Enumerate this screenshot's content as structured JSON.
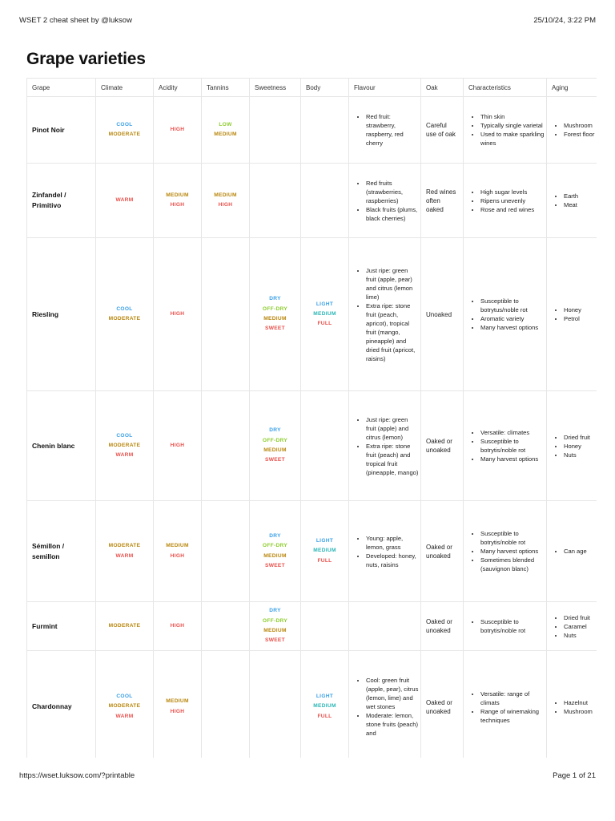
{
  "header": {
    "title": "WSET 2 cheat sheet by @luksow",
    "datetime": "25/10/24, 3:22 PM"
  },
  "footer": {
    "url": "https://wset.luksow.com/?printable",
    "page": "Page 1 of 21"
  },
  "page_title": "Grape varieties",
  "columns": [
    "Grape",
    "Climate",
    "Acidity",
    "Tannins",
    "Sweetness",
    "Body",
    "Flavour",
    "Oak",
    "Characteristics",
    "Aging"
  ],
  "tag_colors": {
    "COOL": "#3aa0e6",
    "MODERATE": "#b8860b",
    "WARM": "#e8504b",
    "HIGH": "#e8504b",
    "LOW": "#8ccc2c",
    "MEDIUM": "#b8860b",
    "DRY": "#3aa0e6",
    "OFF-DRY": "#8ccc2c",
    "SWEET": "#e8504b",
    "LIGHT": "#3aa0e6",
    "FULL": "#e8504b",
    "MEDIUM_BODY": "#2ab5b5"
  },
  "rows": [
    {
      "grape": "Pinot Noir",
      "climate": [
        "COOL",
        "MODERATE"
      ],
      "acidity": [
        "HIGH"
      ],
      "tannins": [
        "LOW",
        "MEDIUM"
      ],
      "sweetness": [],
      "body": [],
      "flavour": [
        "Red fruit: strawberry, raspberry, red cherry"
      ],
      "oak": "Careful use of oak",
      "characteristics": [
        "Thin skin",
        "Typically single varietal",
        "Used to make sparkling wines"
      ],
      "aging": [
        "Mushroom",
        "Forest floor"
      ]
    },
    {
      "grape": "Zinfandel / Primitivo",
      "climate": [
        "WARM"
      ],
      "acidity": [
        "MEDIUM",
        "HIGH"
      ],
      "tannins": [
        "MEDIUM",
        "HIGH"
      ],
      "sweetness": [],
      "body": [],
      "flavour": [
        "Red fruits (strawberries, raspberries)",
        "Black fruits (plums, black cherries)"
      ],
      "oak": "Red wines often oaked",
      "characteristics": [
        "High sugar levels",
        "Ripens unevenly",
        "Rose and red wines"
      ],
      "aging": [
        "Earth",
        "Meat"
      ]
    },
    {
      "grape": "Riesling",
      "climate": [
        "COOL",
        "MODERATE"
      ],
      "acidity": [
        "HIGH"
      ],
      "tannins": [],
      "sweetness": [
        "DRY",
        "OFF-DRY",
        "MEDIUM",
        "SWEET"
      ],
      "body": [
        "LIGHT",
        "MEDIUM",
        "FULL"
      ],
      "flavour": [
        "Just ripe: green fruit (apple, pear) and citrus (lemon lime)",
        "Extra ripe: stone fruit (peach, apricot), tropical fruit (mango, pineapple) and dried fruit (apricot, raisins)"
      ],
      "oak": "Unoaked",
      "characteristics": [
        "Susceptible to botrytus/noble rot",
        "Aromatic variety",
        "Many harvest options"
      ],
      "aging": [
        "Honey",
        "Petrol"
      ]
    },
    {
      "grape": "Chenin blanc",
      "climate": [
        "COOL",
        "MODERATE",
        "WARM"
      ],
      "acidity": [
        "HIGH"
      ],
      "tannins": [],
      "sweetness": [
        "DRY",
        "OFF-DRY",
        "MEDIUM",
        "SWEET"
      ],
      "body": [],
      "flavour": [
        "Just ripe: green fruit (apple) and citrus (lemon)",
        "Extra ripe: stone fruit (peach) and tropical fruit (pineapple, mango)"
      ],
      "oak": "Oaked or unoaked",
      "characteristics": [
        "Versatile: climates",
        "Susceptible to botrytis/noble rot",
        "Many harvest options"
      ],
      "aging": [
        "Dried fruit",
        "Honey",
        "Nuts"
      ]
    },
    {
      "grape": "Sémillon / semillon",
      "climate": [
        "MODERATE",
        "WARM"
      ],
      "acidity": [
        "MEDIUM",
        "HIGH"
      ],
      "tannins": [],
      "sweetness": [
        "DRY",
        "OFF-DRY",
        "MEDIUM",
        "SWEET"
      ],
      "body": [
        "LIGHT",
        "MEDIUM",
        "FULL"
      ],
      "flavour": [
        "Young: apple, lemon, grass",
        "Developed: honey, nuts, raisins"
      ],
      "oak": "Oaked or unoaked",
      "characteristics": [
        "Susceptible to botrytis/noble rot",
        "Many harvest options",
        "Sometimes blended (sauvignon blanc)"
      ],
      "aging": [
        "Can age"
      ]
    },
    {
      "grape": "Furmint",
      "climate": [
        "MODERATE"
      ],
      "acidity": [
        "HIGH"
      ],
      "tannins": [],
      "sweetness": [
        "DRY",
        "OFF-DRY",
        "MEDIUM",
        "SWEET"
      ],
      "body": [],
      "flavour": [],
      "oak": "Oaked or unoaked",
      "characteristics": [
        "Susceptible to botrytis/noble rot"
      ],
      "aging": [
        "Dried fruit",
        "Caramel",
        "Nuts"
      ]
    },
    {
      "grape": "Chardonnay",
      "climate": [
        "COOL",
        "MODERATE",
        "WARM"
      ],
      "acidity": [
        "MEDIUM",
        "HIGH"
      ],
      "tannins": [],
      "sweetness": [],
      "body": [
        "LIGHT",
        "MEDIUM",
        "FULL"
      ],
      "flavour": [
        "Cool: green fruit (apple, pear), citrus (lemon, lime) and wet stones",
        "Moderate: lemon, stone fruits (peach) and"
      ],
      "oak": "Oaked or unoaked",
      "characteristics": [
        "Versatile: range of climats",
        "Range of winemaking techniques"
      ],
      "aging": [
        "Hazelnut",
        "Mushroom"
      ]
    }
  ]
}
